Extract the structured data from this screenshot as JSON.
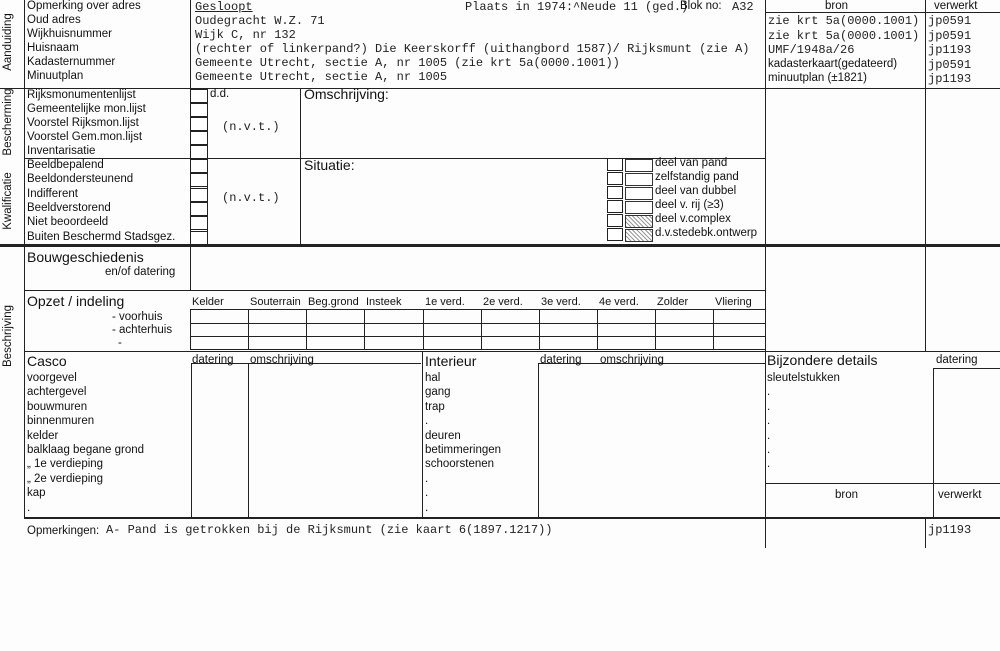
{
  "aanduiding": {
    "section_label": "Aanduiding",
    "labels": [
      "Opmerking over adres",
      "Oud adres",
      "Wijkhuisnummer",
      "Huisnaam",
      "Kadasternummer",
      "Minuutplan"
    ],
    "values": [
      "Gesloopt",
      "Oudegracht W.Z. 71",
      "Wijk C, nr 132",
      "(rechter of linkerpand?) Die Keerskorff (uithangbord 1587)/ Rijksmunt (zie A)",
      "Gemeente Utrecht, sectie A, nr 1005 (zie krt 5a(0000.1001))",
      "Gemeente Utrecht, sectie A, nr 1005"
    ],
    "plaats_1974": "Plaats in 1974:^Neude 11 (ged.)",
    "blok_label": "Blok no:",
    "blok_value": "A32",
    "bron_header": "bron",
    "verwerkt_header": "verwerkt",
    "bron": [
      "zie krt 5a(0000.1001)",
      "zie krt 5a(0000.1001)",
      "UMF/1948a/26",
      "kadasterkaart(gedateerd)",
      "minuutplan (±1821)"
    ],
    "verwerkt": [
      "jp0591",
      "jp0591",
      "jp1193",
      "jp0591",
      "jp1193"
    ]
  },
  "bescherming": {
    "section_label": "Bescherming",
    "items": [
      "Rijksmonumentenlijst",
      "Gemeentelijke mon.lijst",
      "Voorstel Rijksmon.lijst",
      "Voorstel Gem.mon.lijst",
      "Inventarisatie"
    ],
    "dd_label": "d.d.",
    "nvt": "(n.v.t.)",
    "omschrijving_label": "Omschrijving:"
  },
  "kwalificatie": {
    "section_label": "Kwalificatie",
    "items": [
      "Beeldbepalend",
      "Beeldondersteunend",
      "Indifferent",
      "Beeldverstorend",
      "Niet beoordeeld",
      "Buiten Beschermd Stadsgez."
    ],
    "nvt": "(n.v.t.)",
    "situatie_label": "Situatie:",
    "situatie_options": [
      "deel van pand",
      "zelfstandig pand",
      "deel van dubbel",
      "deel v. rij (≥3)",
      "deel v.complex",
      "d.v.stedebk.ontwerp"
    ]
  },
  "beschrijving": {
    "section_label": "Beschrijving",
    "bouwgeschiedenis": "Bouwgeschiedenis",
    "datering_sub": "en/of datering",
    "opzet": "Opzet / indeling",
    "opzet_rows": [
      "- voorhuis",
      "- achterhuis",
      "-"
    ],
    "opzet_columns": [
      "Kelder",
      "Souterrain",
      "Beg.grond",
      "Insteek",
      "1e verd.",
      "2e verd.",
      "3e verd.",
      "4e verd.",
      "Zolder",
      "Vliering"
    ],
    "casco": "Casco",
    "datering": "datering",
    "omschrijving": "omschrijving",
    "casco_items": [
      "voorgevel",
      "achtergevel",
      "bouwmuren",
      "binnenmuren",
      "kelder",
      "balklaag begane grond",
      "„      1e verdieping",
      "„      2e verdieping",
      "kap",
      "."
    ],
    "interieur": "Interieur",
    "interieur_items": [
      "hal",
      "gang",
      "trap",
      ".",
      "deuren",
      "betimmeringen",
      "schoorstenen",
      ".",
      ".",
      "."
    ],
    "bijzondere": "Bijzondere details",
    "bijzondere_items": [
      "sleutelstukken",
      ".",
      ".",
      ".",
      ".",
      ".",
      "."
    ],
    "bron": "bron",
    "verwerkt": "verwerkt"
  },
  "opmerkingen": {
    "label": "Opmerkingen:",
    "text": "A- Pand is getrokken bij de Rijksmunt (zie kaart 6(1897.1217))",
    "verwerkt": "jp1193"
  }
}
